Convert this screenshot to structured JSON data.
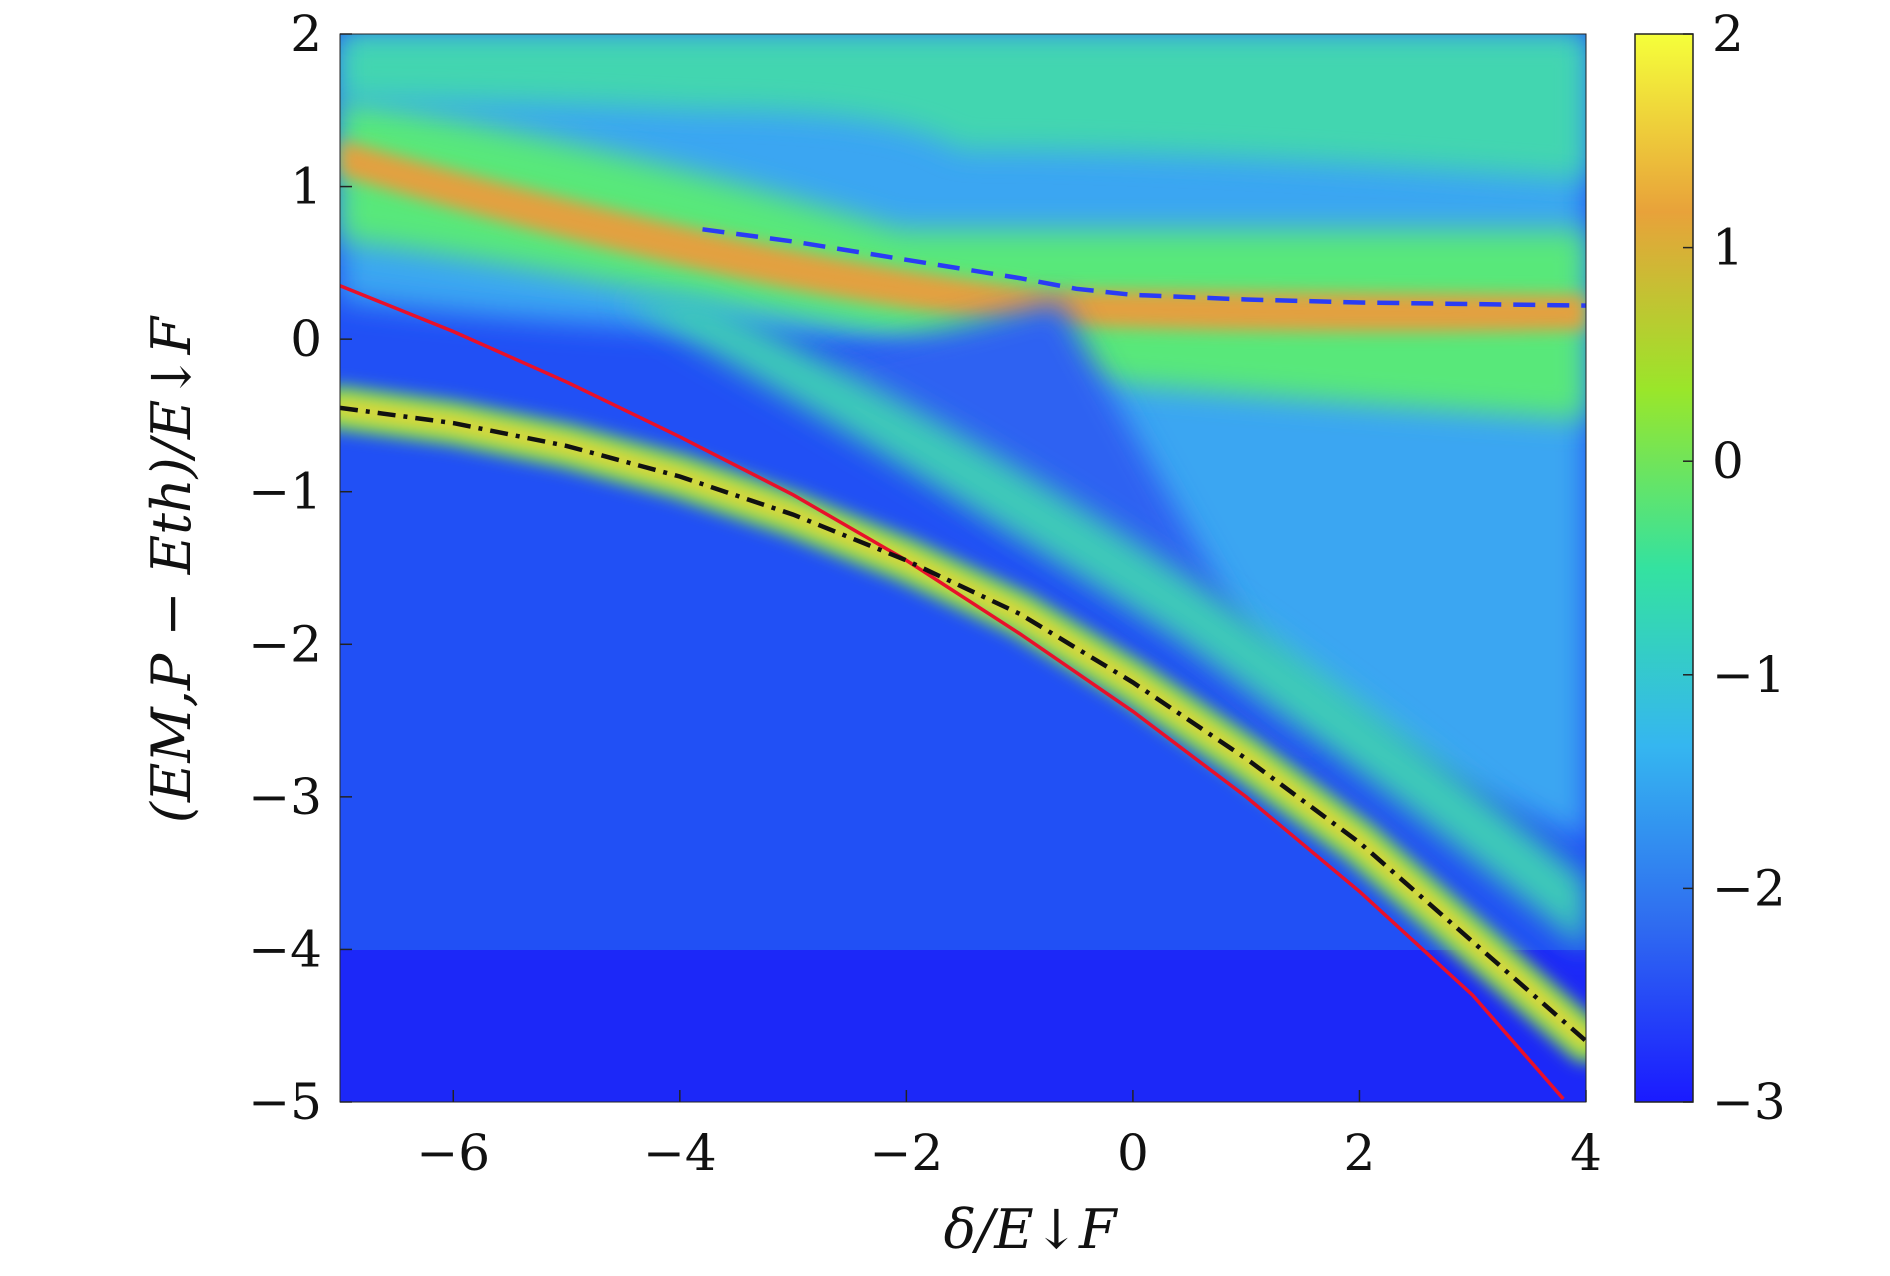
{
  "chart_data": {
    "type": "heatmap",
    "title": "",
    "xlabel": "δ/E↓F",
    "ylabel": "(EM,P − Eth)/E↓F",
    "xlim": [
      -7,
      4
    ],
    "ylim": [
      -5,
      2
    ],
    "x_ticks": [
      -6,
      -4,
      -2,
      0,
      2,
      4
    ],
    "x_tick_labels": [
      "−6",
      "−4",
      "−2",
      "0",
      "2",
      "4"
    ],
    "y_ticks": [
      2,
      1,
      0,
      -1,
      -2,
      -3,
      -4,
      -5
    ],
    "y_tick_labels": [
      "2",
      "1",
      "0",
      "−1",
      "−2",
      "−3",
      "−4",
      "−5"
    ],
    "colorbar": {
      "range": [
        -3,
        2
      ],
      "ticks": [
        2,
        1,
        0,
        -1,
        -2,
        -3
      ],
      "tick_labels": [
        "2",
        "1",
        "0",
        "−1",
        "−2",
        "−3"
      ],
      "colormap": [
        "#1a1aff",
        "#2f6cf0",
        "#35b6f0",
        "#34e2a0",
        "#9ae62a",
        "#e8a23a",
        "#f5ff3a"
      ]
    },
    "grid": false,
    "series": [
      {
        "style": "solid",
        "color": "#e8102a",
        "x": [
          -7,
          -6,
          -5,
          -4,
          -3,
          -2,
          -1,
          0,
          1,
          2,
          3,
          3.8
        ],
        "y": [
          0.35,
          0.05,
          -0.28,
          -0.64,
          -1.02,
          -1.45,
          -1.93,
          -2.44,
          -3.0,
          -3.62,
          -4.3,
          -4.98
        ]
      },
      {
        "style": "dashdot",
        "color": "#111111",
        "x": [
          -7,
          -6,
          -5,
          -4,
          -3,
          -2,
          -1,
          0,
          1,
          2,
          3,
          4
        ],
        "y": [
          -0.45,
          -0.55,
          -0.7,
          -0.9,
          -1.15,
          -1.45,
          -1.8,
          -2.25,
          -2.75,
          -3.3,
          -3.95,
          -4.6
        ]
      },
      {
        "style": "dashed",
        "color": "#2a3cf5",
        "x": [
          -3.8,
          -3,
          -2,
          -1,
          -0.5,
          0,
          1,
          2,
          3,
          4
        ],
        "y": [
          0.72,
          0.64,
          0.52,
          0.4,
          0.33,
          0.29,
          0.26,
          0.24,
          0.23,
          0.22
        ]
      }
    ]
  }
}
